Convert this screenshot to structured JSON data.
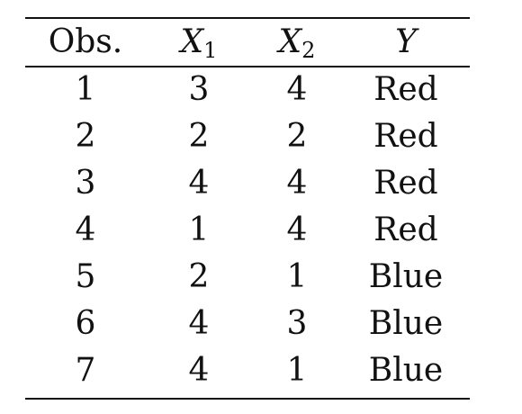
{
  "table": {
    "headers": [
      {
        "text": "Obs.",
        "sub": ""
      },
      {
        "text": "X",
        "sub": "1"
      },
      {
        "text": "X",
        "sub": "2"
      },
      {
        "text": "Y",
        "sub": ""
      }
    ],
    "rows": [
      [
        "1",
        "3",
        "4",
        "Red"
      ],
      [
        "2",
        "2",
        "2",
        "Red"
      ],
      [
        "3",
        "4",
        "4",
        "Red"
      ],
      [
        "4",
        "1",
        "4",
        "Red"
      ],
      [
        "5",
        "2",
        "1",
        "Blue"
      ],
      [
        "6",
        "4",
        "3",
        "Blue"
      ],
      [
        "7",
        "4",
        "1",
        "Blue"
      ]
    ]
  }
}
